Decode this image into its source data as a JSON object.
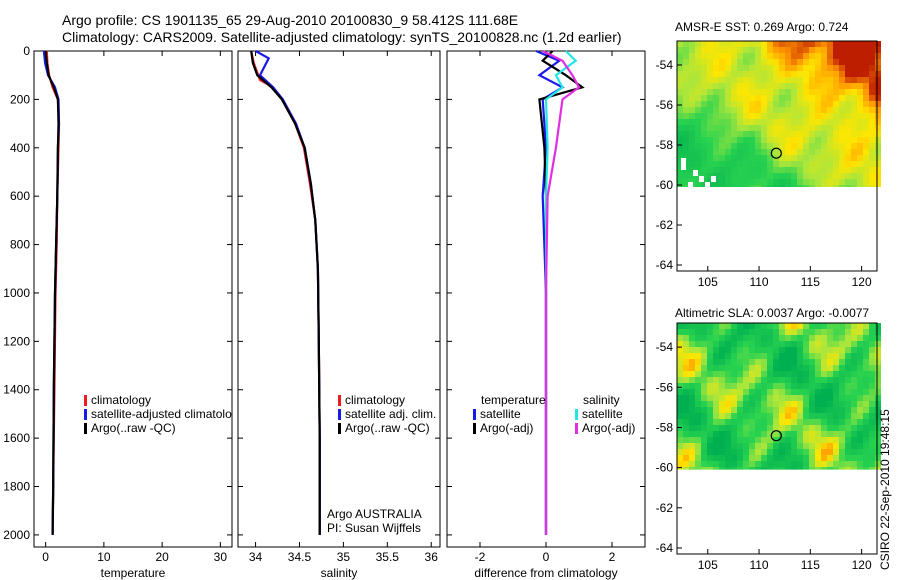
{
  "header": {
    "line1": "Argo profile: CS 1901135_65 29-Aug-2010 20100830_9 58.412S 111.68E",
    "line2": "Climatology: CARS2009. Satellite-adjusted climatology: synTS_20100828.nc (1.2d earlier)"
  },
  "credit": "CSIRO 22-Sep-2010 19:48:15",
  "colors": {
    "red": "#ee1c1c",
    "blue": "#1a1ae8",
    "black": "#000000",
    "cyan": "#22e6e6",
    "magenta": "#e22ee2"
  },
  "chart_data": [
    {
      "type": "line",
      "id": "temperature",
      "xlabel": "temperature",
      "xlim": [
        -2,
        32
      ],
      "ylim": [
        0,
        2050
      ],
      "xticks": [
        "0",
        "10",
        "20",
        "30"
      ],
      "xtick_values": [
        0,
        10,
        20,
        30
      ],
      "yticks": [
        "0",
        "200",
        "400",
        "600",
        "800",
        "1000",
        "1200",
        "1400",
        "1600",
        "1800",
        "2000"
      ],
      "ytick_values": [
        0,
        200,
        400,
        600,
        800,
        1000,
        1200,
        1400,
        1600,
        1800,
        2000
      ],
      "legend": [
        "climatology",
        "satellite-adjusted climatolog",
        "Argo(..raw -QC)"
      ],
      "series": [
        {
          "name": "climatology",
          "color": "red",
          "x": [
            0.2,
            0.3,
            0.6,
            1.2,
            2.1,
            2.3,
            2.2,
            2.0,
            1.9,
            1.7,
            1.5,
            1.3,
            1.2
          ],
          "y": [
            0,
            50,
            100,
            150,
            200,
            300,
            400,
            600,
            800,
            1000,
            1400,
            1800,
            2000
          ]
        },
        {
          "name": "satellite-adjusted climatology",
          "color": "blue",
          "x": [
            -0.3,
            -0.1,
            0.4,
            1.6,
            2.2,
            2.3,
            2.1,
            2.0,
            1.8,
            1.6,
            1.4,
            1.3,
            1.2
          ],
          "y": [
            0,
            50,
            100,
            150,
            200,
            300,
            400,
            600,
            800,
            1000,
            1400,
            1800,
            2000
          ]
        },
        {
          "name": "Argo(..raw -QC)",
          "color": "black",
          "x": [
            0.0,
            0.2,
            0.5,
            1.4,
            2.1,
            2.2,
            2.1,
            2.0,
            1.8,
            1.6,
            1.4,
            1.3,
            1.2
          ],
          "y": [
            0,
            50,
            100,
            150,
            200,
            300,
            400,
            600,
            800,
            1000,
            1400,
            1800,
            2000
          ]
        }
      ]
    },
    {
      "type": "line",
      "id": "salinity",
      "xlabel": "salinity",
      "xlim": [
        33.8,
        36.1
      ],
      "ylim": [
        0,
        2050
      ],
      "xticks": [
        "34",
        "34.5",
        "35",
        "35.5",
        "36"
      ],
      "xtick_values": [
        34,
        34.5,
        35,
        35.5,
        36
      ],
      "legend": [
        "climatology",
        "satellite adj. clim.",
        "Argo(..raw -QC)"
      ],
      "annotations": [
        "Argo AUSTRALIA",
        "PI: Susan Wijffels"
      ],
      "series": [
        {
          "name": "climatology",
          "color": "red",
          "x": [
            33.95,
            33.98,
            34.05,
            34.2,
            34.3,
            34.45,
            34.55,
            34.62,
            34.68,
            34.71,
            34.72,
            34.73,
            34.73
          ],
          "y": [
            0,
            50,
            120,
            150,
            200,
            300,
            400,
            550,
            700,
            900,
            1200,
            1600,
            2000
          ]
        },
        {
          "name": "satellite adj. clim.",
          "color": "blue",
          "x": [
            34.0,
            34.15,
            34.05,
            34.2,
            34.31,
            34.46,
            34.56,
            34.63,
            34.68,
            34.71,
            34.72,
            34.73,
            34.73
          ],
          "y": [
            0,
            30,
            100,
            150,
            200,
            300,
            400,
            550,
            700,
            900,
            1200,
            1600,
            2000
          ]
        },
        {
          "name": "Argo(..raw -QC)",
          "color": "black",
          "x": [
            33.95,
            33.97,
            34.02,
            34.18,
            34.3,
            34.45,
            34.56,
            34.63,
            34.68,
            34.71,
            34.72,
            34.73,
            34.73
          ],
          "y": [
            0,
            50,
            100,
            150,
            200,
            300,
            400,
            550,
            700,
            900,
            1200,
            1600,
            2000
          ]
        }
      ]
    },
    {
      "type": "line",
      "id": "difference",
      "xlabel": "difference from climatology",
      "xlim": [
        -3,
        3
      ],
      "ylim": [
        0,
        2050
      ],
      "xticks": [
        "-2",
        "0",
        "2"
      ],
      "xtick_values": [
        -2,
        0,
        2
      ],
      "legend_headers": [
        "temperature",
        "salinity"
      ],
      "legend": [
        "satellite",
        "Argo(-adj)",
        "satellite",
        "Argo(-adj)"
      ],
      "series": [
        {
          "name": "temperature satellite",
          "color": "blue",
          "x": [
            -0.3,
            0.4,
            -0.2,
            0.5,
            -0.1,
            0.0,
            -0.1,
            0.0,
            0.0,
            0.0
          ],
          "y": [
            0,
            40,
            100,
            150,
            200,
            400,
            600,
            1000,
            1500,
            2000
          ]
        },
        {
          "name": "temperature Argo(-adj)",
          "color": "black",
          "x": [
            0.2,
            -0.1,
            0.6,
            1.1,
            -0.2,
            -0.05,
            0.0,
            0.0,
            0.0,
            0.0
          ],
          "y": [
            0,
            40,
            100,
            150,
            200,
            400,
            600,
            1000,
            1500,
            2000
          ]
        },
        {
          "name": "salinity satellite",
          "color": "cyan",
          "x": [
            0.6,
            0.9,
            0.3,
            0.5,
            0.0,
            0.05,
            0.0,
            0.0,
            0.0,
            0.0
          ],
          "y": [
            0,
            40,
            100,
            150,
            200,
            400,
            600,
            1000,
            1500,
            2000
          ]
        },
        {
          "name": "salinity Argo(-adj)",
          "color": "magenta",
          "x": [
            -0.1,
            0.5,
            0.8,
            1.0,
            0.5,
            0.3,
            0.05,
            0.0,
            0.0,
            0.0
          ],
          "y": [
            0,
            40,
            100,
            150,
            200,
            400,
            600,
            1000,
            1500,
            2000
          ]
        }
      ]
    },
    {
      "type": "heatmap",
      "id": "sst-map",
      "title": "AMSR-E SST: 0.269 Argo: 0.724",
      "xlim": [
        102,
        121.5
      ],
      "ylim": [
        -64.3,
        -52.8
      ],
      "xticks": [
        "105",
        "110",
        "115",
        "120"
      ],
      "xtick_values": [
        105,
        110,
        115,
        120
      ],
      "yticks": [
        "-54",
        "-56",
        "-58",
        "-60",
        "-62",
        "-64"
      ],
      "ytick_values": [
        -54,
        -56,
        -58,
        -60,
        -62,
        -64
      ],
      "data_lat_min": -60.1,
      "marker": {
        "lon": 111.68,
        "lat": -58.41
      }
    },
    {
      "type": "heatmap",
      "id": "sla-map",
      "title": "Altimetric SLA: 0.0037 Argo: -0.0077",
      "xlim": [
        102,
        121.5
      ],
      "ylim": [
        -64.3,
        -52.8
      ],
      "xticks": [
        "105",
        "110",
        "115",
        "120"
      ],
      "xtick_values": [
        105,
        110,
        115,
        120
      ],
      "yticks": [
        "-54",
        "-56",
        "-58",
        "-60",
        "-62",
        "-64"
      ],
      "ytick_values": [
        -54,
        -56,
        -58,
        -60,
        -62,
        -64
      ],
      "data_lat_min": -60.1,
      "marker": {
        "lon": 111.68,
        "lat": -58.41
      }
    }
  ]
}
